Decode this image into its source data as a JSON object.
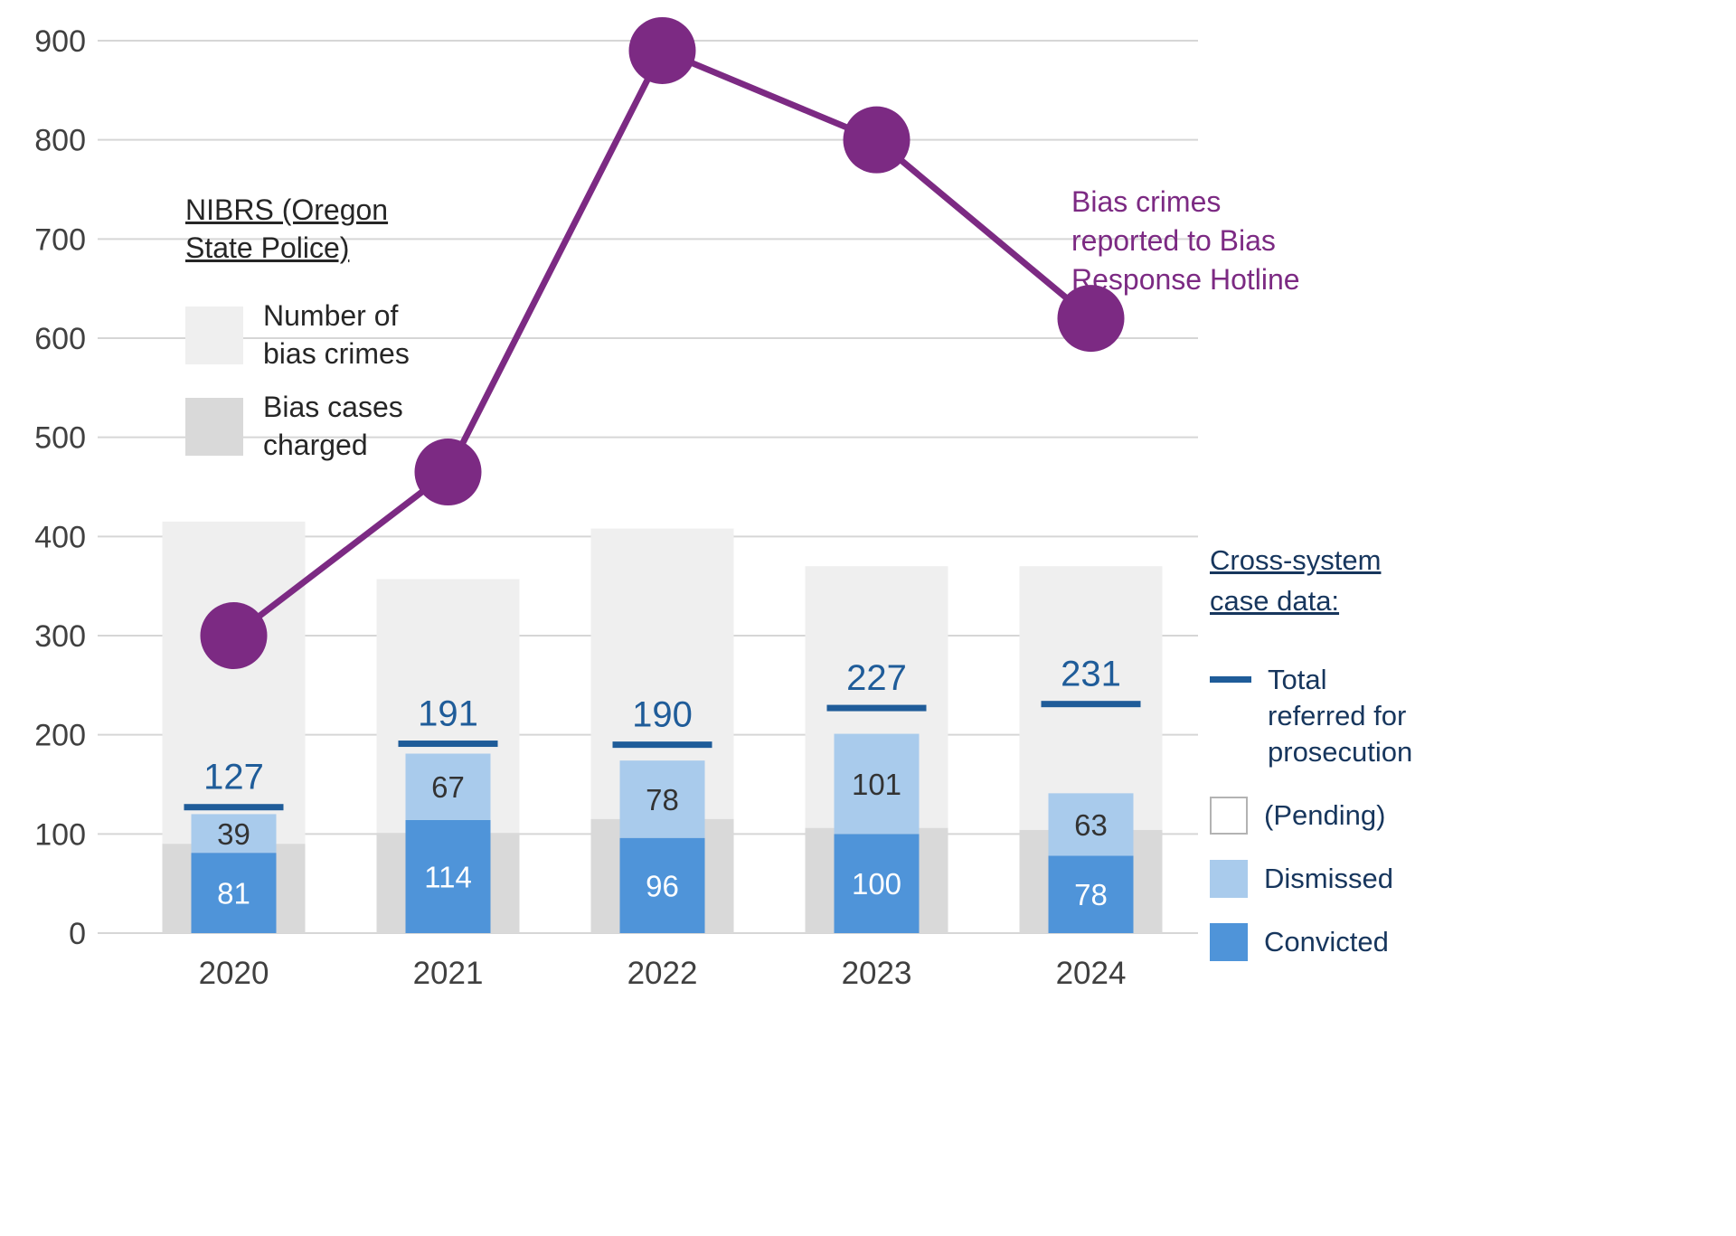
{
  "colors": {
    "bar_light": "#efefef",
    "bar_charged": "#d9d9d9",
    "convicted": "#4f94d9",
    "dismissed": "#a9cbec",
    "referred_line": "#1f5c99",
    "hotline": "#7c2a83",
    "gridline": "#d6d6d6",
    "axis_text": "#404040",
    "label_dark": "#333333",
    "legend_text": "#262626",
    "cross_system_text": "#17365d"
  },
  "chart_data": {
    "type": "bar",
    "subtype": "combo-grouped-stacked-bars-with-line",
    "categories": [
      "2020",
      "2021",
      "2022",
      "2023",
      "2024"
    ],
    "series": [
      {
        "role": "crimes",
        "name": "Number of bias crimes",
        "type": "bar",
        "values": [
          415,
          357,
          408,
          370,
          370
        ]
      },
      {
        "role": "charged",
        "name": "Bias cases charged",
        "type": "bar",
        "values": [
          90,
          101,
          115,
          106,
          104
        ]
      },
      {
        "role": "convicted",
        "name": "Convicted",
        "type": "bar",
        "values": [
          81,
          114,
          96,
          100,
          78
        ]
      },
      {
        "role": "dismissed",
        "name": "Dismissed",
        "type": "bar",
        "values": [
          39,
          67,
          78,
          101,
          63
        ]
      },
      {
        "role": "referred",
        "name": "Total referred for prosecution",
        "type": "tick",
        "values": [
          127,
          191,
          190,
          227,
          231
        ]
      },
      {
        "role": "hotline",
        "name": "Bias crimes reported to Bias Response Hotline",
        "type": "line",
        "values": [
          300,
          465,
          890,
          800,
          620
        ]
      }
    ],
    "ylim": [
      0,
      900
    ],
    "yticks": [
      0,
      100,
      200,
      300,
      400,
      500,
      600,
      700,
      800,
      900
    ],
    "grid": true,
    "legend_position": "left-and-right"
  },
  "legends": {
    "nibrs": {
      "title": "NIBRS (Oregon State Police)",
      "items": [
        {
          "label": "Number of bias crimes"
        },
        {
          "label": "Bias cases charged"
        }
      ]
    },
    "hotline_label": "Bias crimes reported to Bias Response Hotline",
    "cross_system": {
      "title": "Cross-system case data:",
      "items": [
        {
          "label": "Total referred for prosecution"
        },
        {
          "label": "(Pending)"
        },
        {
          "label": "Dismissed"
        },
        {
          "label": "Convicted"
        }
      ]
    }
  }
}
